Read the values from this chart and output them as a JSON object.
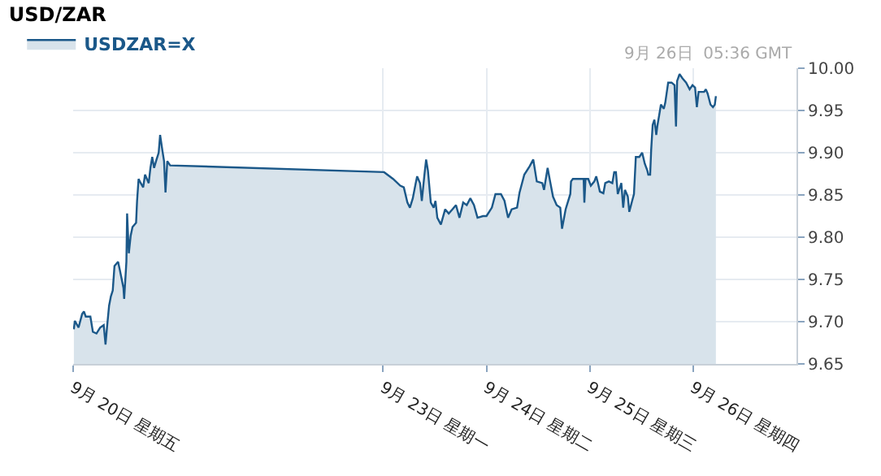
{
  "chart_data": {
    "type": "area",
    "title": "USD/ZAR",
    "annotations": [
      "9月 26日  05:36 GMT"
    ],
    "legend": "top left",
    "grid": true,
    "marker": "none",
    "line_style": "solid",
    "xlim": [
      "--09-20",
      "--09-27"
    ],
    "xticks": [
      {
        "value": "--09-20",
        "label": "9月 20日 星期五"
      },
      {
        "value": "--09-23",
        "label": "9月 23日 星期一"
      },
      {
        "value": "--09-24",
        "label": "9月 24日 星期二"
      },
      {
        "value": "--09-25",
        "label": "9月 25日 星期三"
      },
      {
        "value": "--09-26",
        "label": "9月 26日 星期四"
      }
    ],
    "ylim": [
      9.65,
      10.0
    ],
    "yticks": [
      {
        "value": 9.65,
        "label": "9.65"
      },
      {
        "value": 9.7,
        "label": "9.70"
      },
      {
        "value": 9.75,
        "label": "9.75"
      },
      {
        "value": 9.8,
        "label": "9.80"
      },
      {
        "value": 9.85,
        "label": "9.85"
      },
      {
        "value": 9.9,
        "label": "9.90"
      },
      {
        "value": 9.95,
        "label": "9.95"
      },
      {
        "value": 10.0,
        "label": "10.00"
      }
    ],
    "series": [
      {
        "name": "USDZAR=X",
        "color": "#1b5889",
        "x": [
          "--09-20T00:10",
          "--09-20T00:24",
          "--09-20T01:15",
          "--09-20T02:05",
          "--09-20T02:30",
          "--09-20T02:56",
          "--09-20T04:00",
          "--09-20T04:35",
          "--09-20T05:25",
          "--09-20T06:16",
          "--09-20T07:06",
          "--09-20T07:31",
          "--09-20T07:55",
          "--09-20T08:21",
          "--09-20T08:46",
          "--09-20T09:12",
          "--09-20T09:36",
          "--09-20T10:26",
          "--09-20T10:51",
          "--09-20T11:41",
          "--09-20T11:51",
          "--09-20T12:22",
          "--09-20T12:32",
          "--09-20T12:56",
          "--09-20T13:22",
          "--09-20T13:47",
          "--09-20T14:37",
          "--09-20T14:51",
          "--09-20T15:12",
          "--09-20T15:42",
          "--09-20T16:16",
          "--09-20T16:42",
          "--09-20T17:33",
          "--09-20T17:57",
          "--09-20T18:22",
          "--09-20T18:48",
          "--09-20T19:22",
          "--09-20T19:52",
          "--09-20T20:12",
          "--09-20T20:43",
          "--09-20T21:07",
          "--09-20T21:27",
          "--09-20T21:52",
          "--09-20T22:32",
          "--09-23T00:13",
          "--09-23T02:18",
          "--09-23T03:58",
          "--09-23T04:48",
          "--09-23T05:38",
          "--09-23T06:13",
          "--09-23T06:53",
          "--09-23T07:34",
          "--09-23T07:54",
          "--09-23T08:34",
          "--09-23T08:59",
          "--09-23T09:33",
          "--09-23T09:59",
          "--09-23T10:24",
          "--09-23T11:04",
          "--09-23T11:44",
          "--09-23T12:09",
          "--09-23T12:35",
          "--09-23T13:25",
          "--09-23T14:24",
          "--09-23T15:14",
          "--09-23T16:05",
          "--09-23T16:55",
          "--09-23T17:44",
          "--09-23T18:35",
          "--09-23T19:25",
          "--09-23T20:15",
          "--09-23T21:06",
          "--09-23T21:55",
          "--09-23T23:11",
          "--09-24T00:00",
          "--09-24T01:15",
          "--09-24T02:05",
          "--09-24T03:22",
          "--09-24T04:11",
          "--09-24T05:01",
          "--09-24T05:51",
          "--09-24T07:06",
          "--09-24T07:41",
          "--09-24T08:47",
          "--09-24T10:02",
          "--09-24T10:52",
          "--09-24T11:41",
          "--09-24T12:58",
          "--09-24T13:22",
          "--09-24T14:12",
          "--09-24T14:47",
          "--09-24T15:27",
          "--09-24T16:18",
          "--09-24T17:08",
          "--09-24T17:33",
          "--09-24T18:23",
          "--09-24T19:28",
          "--09-24T19:38",
          "--09-24T20:04",
          "--09-24T21:19",
          "--09-24T22:34",
          "--09-24T22:44",
          "--09-24T23:00",
          "--09-24T23:38",
          "--09-25T00:14",
          "--09-25T01:03",
          "--09-25T01:29",
          "--09-25T01:54",
          "--09-25T02:20",
          "--09-25T03:09",
          "--09-25T03:35",
          "--09-25T04:25",
          "--09-25T05:14",
          "--09-25T05:40",
          "--09-25T06:04",
          "--09-25T06:30",
          "--09-25T07:19",
          "--09-25T07:45",
          "--09-25T08:10",
          "--09-25T08:50",
          "--09-25T09:10",
          "--09-25T09:50",
          "--09-25T10:15",
          "--09-25T10:41",
          "--09-25T11:30",
          "--09-25T12:10",
          "--09-25T12:46",
          "--09-25T13:21",
          "--09-25T13:35",
          "--09-25T14:01",
          "--09-25T14:15",
          "--09-25T14:36",
          "--09-25T15:00",
          "--09-25T15:26",
          "--09-25T15:40",
          "--09-25T16:06",
          "--09-25T16:31",
          "--09-25T17:11",
          "--09-25T17:31",
          "--09-25T18:12",
          "--09-25T19:00",
          "--09-25T19:41",
          "--09-25T20:01",
          "--09-25T20:17",
          "--09-25T20:51",
          "--09-25T21:32",
          "--09-25T22:22",
          "--09-25T23:11",
          "--09-25T23:51",
          "--09-26T00:27",
          "--09-26T00:52",
          "--09-26T01:16",
          "--09-26T02:33",
          "--09-26T02:57",
          "--09-26T03:22",
          "--09-26T04:02",
          "--09-26T04:36",
          "--09-26T05:02",
          "--09-26T05:17"
        ],
        "values": [
          9.691,
          9.701,
          9.693,
          9.709,
          9.712,
          9.706,
          9.706,
          9.688,
          9.686,
          9.693,
          9.696,
          9.673,
          9.696,
          9.719,
          9.73,
          9.737,
          9.766,
          9.771,
          9.761,
          9.74,
          9.727,
          9.771,
          9.828,
          9.781,
          9.802,
          9.812,
          9.817,
          9.843,
          9.869,
          9.864,
          9.859,
          9.874,
          9.864,
          9.882,
          9.895,
          9.882,
          9.892,
          9.9,
          9.921,
          9.903,
          9.89,
          9.853,
          9.89,
          9.885,
          9.877,
          9.869,
          9.861,
          9.859,
          9.841,
          9.835,
          9.846,
          9.864,
          9.872,
          9.864,
          9.843,
          9.872,
          9.892,
          9.879,
          9.841,
          9.835,
          9.843,
          9.823,
          9.815,
          9.833,
          9.828,
          9.833,
          9.838,
          9.823,
          9.841,
          9.838,
          9.846,
          9.838,
          9.823,
          9.825,
          9.825,
          9.835,
          9.851,
          9.851,
          9.843,
          9.823,
          9.833,
          9.835,
          9.853,
          9.874,
          9.884,
          9.892,
          9.866,
          9.864,
          9.856,
          9.882,
          9.866,
          9.848,
          9.838,
          9.835,
          9.81,
          9.833,
          9.851,
          9.866,
          9.869,
          9.869,
          9.869,
          9.841,
          9.869,
          9.869,
          9.861,
          9.866,
          9.872,
          9.864,
          9.854,
          9.852,
          9.864,
          9.866,
          9.864,
          9.877,
          9.877,
          9.851,
          9.864,
          9.835,
          9.856,
          9.848,
          9.83,
          9.843,
          9.851,
          9.895,
          9.895,
          9.9,
          9.887,
          9.879,
          9.874,
          9.874,
          9.903,
          9.933,
          9.939,
          9.921,
          9.931,
          9.944,
          9.957,
          9.952,
          9.959,
          9.983,
          9.983,
          9.98,
          9.931,
          9.985,
          9.993,
          9.988,
          9.983,
          9.975,
          9.98,
          9.977,
          9.954,
          9.972,
          9.972,
          9.975,
          9.97,
          9.957,
          9.954,
          9.957,
          9.967
        ]
      }
    ]
  }
}
